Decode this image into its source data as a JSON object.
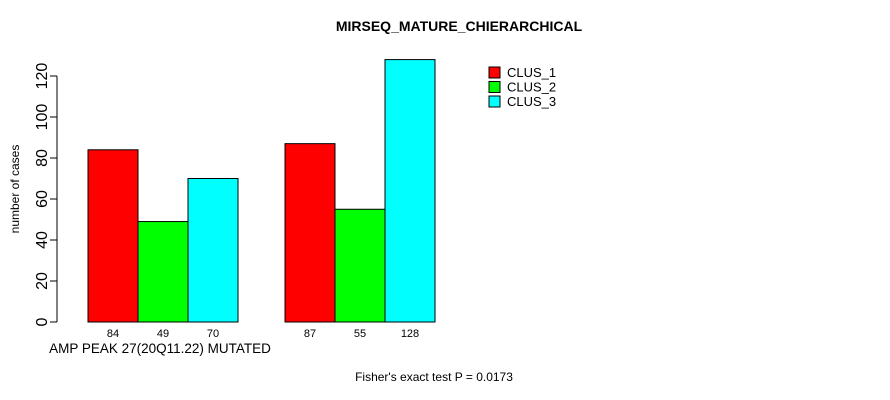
{
  "page": {
    "background": "#ffffff",
    "text_color": "#000000"
  },
  "chart_data": {
    "type": "bar",
    "title": "MIRSEQ_MATURE_CHIERARCHICAL",
    "ylabel": "number of cases",
    "xlabel": "AMP PEAK 27(20Q11.22) MUTATED",
    "annotation": "Fisher's exact test P = 0.0173",
    "categories": [
      "AMP PEAK 27(20Q11.22) MUTATED",
      ""
    ],
    "series": [
      {
        "name": "CLUS_1",
        "color": "#ff0000",
        "values": [
          84,
          87
        ]
      },
      {
        "name": "CLUS_2",
        "color": "#00ff00",
        "values": [
          49,
          55
        ]
      },
      {
        "name": "CLUS_3",
        "color": "#00ffff",
        "values": [
          70,
          128
        ]
      }
    ],
    "values_shown_as_bar_labels": true,
    "yticks": [
      0,
      20,
      40,
      60,
      80,
      100,
      120
    ],
    "ylim": [
      0,
      132
    ],
    "grid": false,
    "bar_edge_color": "#000000",
    "axis_color": "#000000",
    "legend": {
      "position": "inside-top",
      "entries": [
        "CLUS_1",
        "CLUS_2",
        "CLUS_3"
      ],
      "colors": [
        "#ff0000",
        "#00ff00",
        "#00ffff"
      ]
    }
  }
}
